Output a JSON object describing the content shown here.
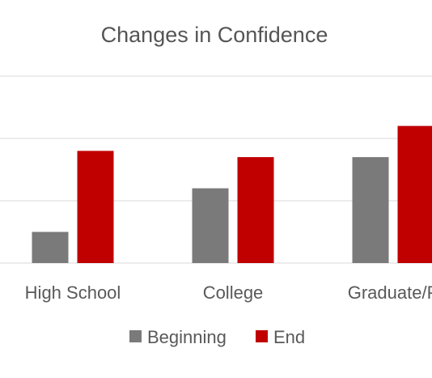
{
  "chart_data": {
    "type": "bar",
    "title": "Changes in Confidence",
    "categories": [
      "High School",
      "College",
      "Graduate/P"
    ],
    "series": [
      {
        "name": "Beginning",
        "values": [
          0.5,
          1.2,
          1.7
        ],
        "color": "#7a7a7a"
      },
      {
        "name": "End",
        "values": [
          1.8,
          1.7,
          2.2
        ],
        "color": "#c00000"
      }
    ],
    "xlabel": "",
    "ylabel": "",
    "ylim": [
      0,
      3
    ],
    "grid": true,
    "legend": "bottom",
    "notes": ""
  }
}
